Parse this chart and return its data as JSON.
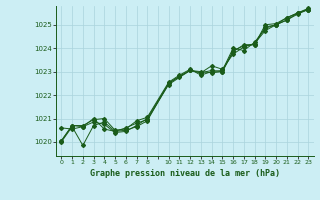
{
  "title": "Graphe pression niveau de la mer (hPa)",
  "background_color": "#cceef4",
  "grid_color": "#aad4dc",
  "line_color": "#1a5c1a",
  "xlim": [
    -0.5,
    23.5
  ],
  "ylim": [
    1019.4,
    1025.8
  ],
  "yticks": [
    1020,
    1021,
    1022,
    1023,
    1024,
    1025
  ],
  "xtick_positions": [
    0,
    1,
    2,
    3,
    4,
    5,
    6,
    7,
    8,
    9,
    10,
    11,
    12,
    13,
    14,
    15,
    16,
    17,
    18,
    19,
    20,
    21,
    22,
    23
  ],
  "xtick_labels": [
    "0",
    "1",
    "2",
    "3",
    "4",
    "5",
    "6",
    "7",
    "8",
    "",
    "10",
    "11",
    "12",
    "13",
    "14",
    "15",
    "16",
    "17",
    "18",
    "19",
    "20",
    "21",
    "22",
    "23"
  ],
  "line1_x": [
    0,
    1,
    2,
    3,
    4,
    5,
    6,
    7,
    8,
    10,
    11,
    12,
    13,
    14,
    15,
    16,
    17,
    18,
    19,
    20,
    21,
    22,
    23
  ],
  "line1_y": [
    1020.0,
    1020.65,
    1019.85,
    1020.7,
    1020.85,
    1020.45,
    1020.5,
    1020.65,
    1020.9,
    1022.5,
    1022.8,
    1023.05,
    1023.0,
    1022.95,
    1023.0,
    1023.85,
    1024.15,
    1024.15,
    1025.0,
    1025.05,
    1025.3,
    1025.5,
    1025.65
  ],
  "line2_x": [
    0,
    1,
    2,
    3,
    4,
    5,
    6,
    7,
    8,
    10,
    11,
    12,
    13,
    14,
    15,
    16,
    17,
    18,
    19,
    20,
    21,
    22,
    23
  ],
  "line2_y": [
    1020.6,
    1020.55,
    1020.65,
    1021.0,
    1020.55,
    1020.45,
    1020.6,
    1020.8,
    1020.95,
    1022.45,
    1022.75,
    1023.05,
    1022.95,
    1023.25,
    1023.1,
    1023.75,
    1024.05,
    1024.2,
    1024.75,
    1025.0,
    1025.2,
    1025.45,
    1025.65
  ],
  "line3_x": [
    0,
    1,
    2,
    3,
    4,
    5,
    6,
    7,
    8,
    10,
    11,
    12,
    13,
    14,
    15,
    16,
    17,
    18,
    19,
    20,
    21,
    22,
    23
  ],
  "line3_y": [
    1020.05,
    1020.7,
    1020.7,
    1020.95,
    1021.0,
    1020.5,
    1020.55,
    1020.9,
    1021.05,
    1022.55,
    1022.85,
    1023.1,
    1022.85,
    1023.0,
    1023.05,
    1024.0,
    1023.9,
    1024.25,
    1024.85,
    1025.0,
    1025.3,
    1025.5,
    1025.7
  ],
  "line4_x": [
    0,
    1,
    2,
    3,
    4,
    5,
    6,
    7,
    8,
    10,
    11,
    12,
    13,
    14,
    15,
    16,
    17,
    18,
    19,
    20,
    21,
    22,
    23
  ],
  "line4_y": [
    1020.05,
    1020.7,
    1020.65,
    1020.85,
    1020.75,
    1020.4,
    1020.45,
    1020.7,
    1021.0,
    1022.5,
    1022.8,
    1023.05,
    1022.95,
    1023.05,
    1023.0,
    1023.9,
    1024.1,
    1024.15,
    1024.9,
    1025.0,
    1025.2,
    1025.5,
    1025.65
  ]
}
